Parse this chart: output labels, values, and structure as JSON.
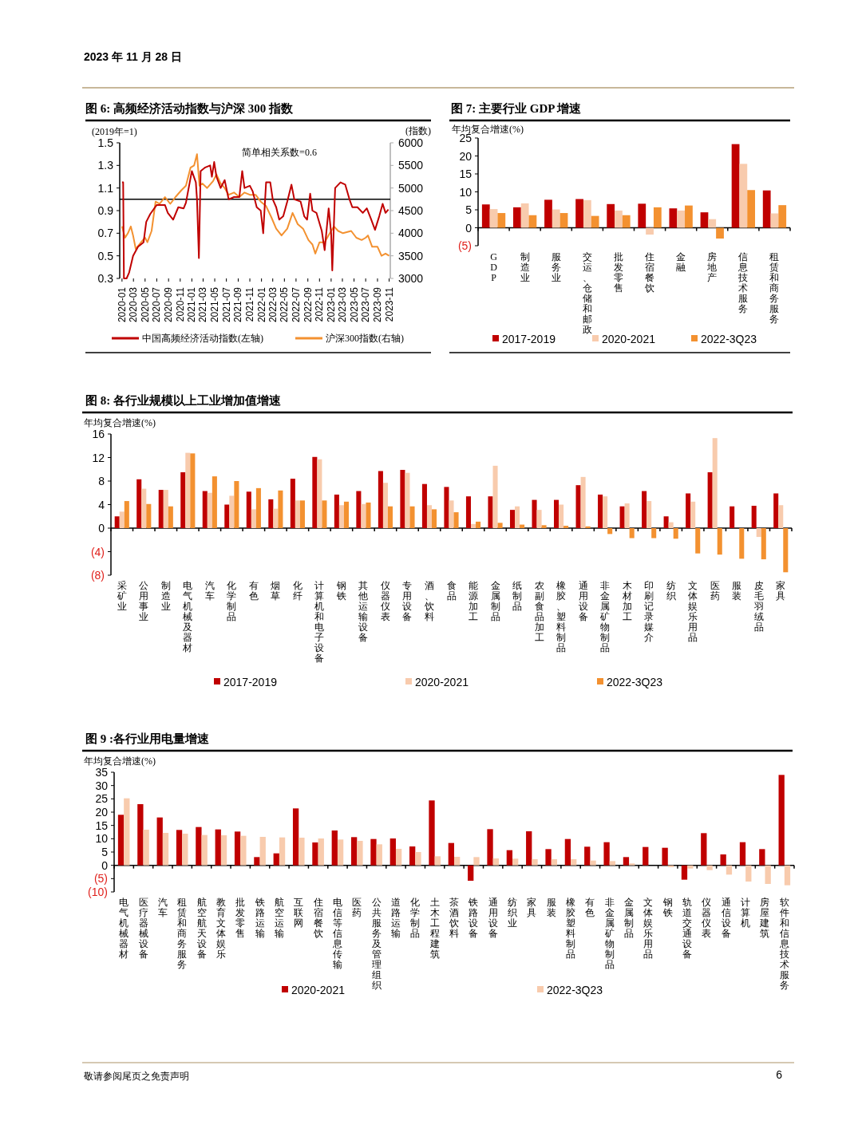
{
  "chart_data": [
    {
      "type": "line",
      "title": "图 6: 高频经济活动指数与沪深 300 指数",
      "ylabel": "(2019年=1)",
      "y2label": "(指数)",
      "xlim": [
        "2019-12-20",
        "2023-11-07"
      ],
      "xticks": [
        "2020-01",
        "2020-03",
        "2020-05",
        "2020-07",
        "2020-09",
        "2020-11",
        "2021-01",
        "2021-03",
        "2021-05",
        "2021-07",
        "2021-09",
        "2021-11",
        "2022-01",
        "2022-03",
        "2022-05",
        "2022-07",
        "2022-09",
        "2022-11",
        "2023-01",
        "2023-03",
        "2023-05",
        "2023-07",
        "2023-09",
        "2023-11"
      ],
      "ylim": [
        0.3,
        1.5
      ],
      "yticks": [
        0.3,
        0.5,
        0.7,
        0.9,
        1.1,
        1.3,
        1.5
      ],
      "y2lim": [
        3000,
        6000
      ],
      "y2ticks": [
        3000,
        3500,
        4000,
        4500,
        5000,
        5500,
        6000
      ],
      "legend": "bottom",
      "ref_lines": [
        {
          "axis": "y",
          "value": 1,
          "color": "#000000"
        }
      ],
      "annotations": [
        "简单相关系数=0.6",
        "2023 年 11 月 28 日"
      ],
      "series": [
        {
          "name": "中国高频经济活动指数(左轴)",
          "color": "#c00000",
          "x": [
            "2020-01-01",
            "2020-01-07",
            "2020-01-11",
            "2020-01-25",
            "2020-02-07",
            "2020-02-28",
            "2020-03-25",
            "2020-04-23",
            "2020-05-07",
            "2020-05-28",
            "2020-07-01",
            "2020-08-13",
            "2020-08-28",
            "2020-09-25",
            "2020-10-22",
            "2020-11-19",
            "2020-12-01",
            "2021-01-01",
            "2021-01-22",
            "2021-01-28",
            "2021-02-07",
            "2021-02-16",
            "2021-03-10",
            "2021-04-07",
            "2021-04-16",
            "2021-04-28",
            "2021-05-10",
            "2021-06-01",
            "2021-06-22",
            "2021-07-13",
            "2021-08-10",
            "2021-09-07",
            "2021-09-22",
            "2021-10-04",
            "2021-11-01",
            "2021-11-16",
            "2021-12-07",
            "2021-12-28",
            "2022-01-10",
            "2022-01-25",
            "2022-02-16",
            "2022-03-01",
            "2022-03-19",
            "2022-04-04",
            "2022-04-25",
            "2022-05-16",
            "2022-06-07",
            "2022-06-22",
            "2022-07-25",
            "2022-08-13",
            "2022-08-28",
            "2022-09-13",
            "2022-09-25",
            "2022-10-16",
            "2022-11-13",
            "2022-11-28",
            "2022-12-19",
            "2023-01-01",
            "2023-01-07",
            "2023-01-22",
            "2023-02-19",
            "2023-03-16",
            "2023-04-07",
            "2023-04-22",
            "2023-05-19",
            "2023-06-16",
            "2023-07-07",
            "2023-07-28",
            "2023-08-19",
            "2023-09-10",
            "2023-09-28",
            "2023-10-13",
            "2023-10-28"
          ],
          "values": [
            1.15,
            1.15,
            0.3,
            0.3,
            0.35,
            0.5,
            0.58,
            0.62,
            0.8,
            0.87,
            0.95,
            0.95,
            0.88,
            0.82,
            0.93,
            0.92,
            0.97,
            1.25,
            1.15,
            1.0,
            0.48,
            1.25,
            1.28,
            1.3,
            1.2,
            1.33,
            1.2,
            1.1,
            1.17,
            1.0,
            1.02,
            1.02,
            1.25,
            1.1,
            1.12,
            1.07,
            0.93,
            0.9,
            0.7,
            1.15,
            1.15,
            1.0,
            0.93,
            0.82,
            0.85,
            0.98,
            1.13,
            1.0,
            0.98,
            0.85,
            0.82,
            1.05,
            0.9,
            0.88,
            0.72,
            0.55,
            0.92,
            0.7,
            0.37,
            1.1,
            1.15,
            1.13,
            1.0,
            0.93,
            0.93,
            0.88,
            0.92,
            0.83,
            0.73,
            0.85,
            0.96,
            0.88,
            0.91
          ]
        },
        {
          "name": "沪深300指数(右轴)",
          "color": "#f39130",
          "axis": "y2",
          "x": [
            "2020-01-01",
            "2020-01-17",
            "2020-02-01",
            "2020-02-16",
            "2020-02-28",
            "2020-03-13",
            "2020-04-10",
            "2020-05-01",
            "2020-05-13",
            "2020-06-04",
            "2020-06-25",
            "2020-07-16",
            "2020-08-13",
            "2020-09-10",
            "2020-10-07",
            "2020-11-07",
            "2020-12-01",
            "2020-12-25",
            "2021-01-13",
            "2021-01-28",
            "2021-02-10",
            "2021-02-25",
            "2021-03-22",
            "2021-04-22",
            "2021-05-10",
            "2021-06-01",
            "2021-06-22",
            "2021-07-13",
            "2021-08-10",
            "2021-09-07",
            "2021-10-04",
            "2021-11-01",
            "2021-12-01",
            "2021-12-28",
            "2022-01-25",
            "2022-02-22",
            "2022-03-19",
            "2022-04-16",
            "2022-05-16",
            "2022-06-13",
            "2022-07-10",
            "2022-08-07",
            "2022-09-04",
            "2022-09-25",
            "2022-10-10",
            "2022-11-01",
            "2022-11-28",
            "2022-12-25",
            "2023-01-16",
            "2023-02-07",
            "2023-03-04",
            "2023-04-16",
            "2023-05-13",
            "2023-06-10",
            "2023-07-01",
            "2023-07-13",
            "2023-08-04",
            "2023-09-01",
            "2023-09-22",
            "2023-10-13",
            "2023-11-01"
          ],
          "values": [
            4150,
            3900,
            4000,
            4150,
            3950,
            3650,
            3800,
            3900,
            3800,
            4050,
            4700,
            4650,
            4800,
            4650,
            4800,
            4950,
            5050,
            5450,
            5500,
            5750,
            5050,
            5100,
            5000,
            5150,
            5300,
            5100,
            5000,
            4850,
            4900,
            4800,
            4900,
            4850,
            4850,
            4700,
            4600,
            4350,
            4100,
            3950,
            4100,
            4450,
            4200,
            4100,
            3850,
            3750,
            3550,
            3800,
            3800,
            4000,
            4150,
            4050,
            4000,
            4050,
            3900,
            3850,
            3900,
            3950,
            3700,
            3700,
            3500,
            3550,
            3500
          ]
        }
      ]
    },
    {
      "type": "bar",
      "title": "图 7: 主要行业 GDP 增速",
      "ylabel": "年均复合增速(%)",
      "ylim": [
        -5,
        25
      ],
      "yticks": [
        {
          "value": -5,
          "label": "(5)"
        },
        0,
        5,
        10,
        15,
        20,
        25
      ],
      "legend": "bottom",
      "categories": [
        "GDP",
        "制造业",
        "服务业",
        "交运、仓储和邮政",
        "批发零售",
        "住宿餐饮",
        "金融",
        "房地产",
        "信息技术服务",
        "租赁和商务服务"
      ],
      "series": [
        {
          "name": "2017-2019",
          "color": "#c00000",
          "values": [
            6.5,
            5.7,
            7.8,
            8.0,
            6.6,
            6.7,
            5.4,
            4.3,
            23.3,
            10.4
          ]
        },
        {
          "name": "2020-2021",
          "color": "#f8cbad",
          "values": [
            5.2,
            6.8,
            5.1,
            7.7,
            4.8,
            -1.9,
            4.8,
            2.4,
            17.8,
            4.0
          ]
        },
        {
          "name": "2022-3Q23",
          "color": "#f39130",
          "values": [
            4.1,
            3.5,
            4.1,
            3.3,
            3.5,
            5.7,
            6.2,
            -3.0,
            10.5,
            6.3
          ]
        }
      ]
    },
    {
      "type": "bar",
      "title": "图 8: 各行业规模以上工业增加值增速",
      "ylabel": "年均复合增速(%)",
      "ylim": [
        -8,
        16
      ],
      "yticks": [
        {
          "value": -8,
          "label": "(8)"
        },
        {
          "value": -4,
          "label": "(4)"
        },
        0,
        4,
        8,
        12,
        16
      ],
      "legend": "bottom",
      "categories": [
        "采矿业",
        "公用事业",
        "制造业",
        "电气机械及器材",
        "汽车",
        "化学制品",
        "有色",
        "烟草",
        "化纤",
        "计算机和电子设备",
        "钢铁",
        "其他运输设备",
        "仪器仪表",
        "专用设备",
        "酒、饮料",
        "食品",
        "能源加工",
        "金属制品",
        "纸制品",
        "农副食品加工",
        "橡胶、塑料制品",
        "通用设备",
        "非金属矿物制品",
        "木材加工",
        "印刷记录媒介",
        "纺织",
        "文体娱乐用品",
        "医药",
        "服装",
        "皮毛羽绒品",
        "家具"
      ],
      "series": [
        {
          "name": "2017-2019",
          "color": "#c00000",
          "values": [
            2.0,
            8.3,
            6.5,
            9.5,
            6.3,
            4.0,
            6.2,
            4.9,
            8.4,
            12.1,
            5.7,
            6.3,
            9.7,
            9.9,
            7.5,
            7.0,
            5.4,
            5.4,
            3.1,
            4.8,
            4.8,
            7.3,
            5.7,
            3.7,
            6.3,
            2.0,
            5.9,
            9.5,
            3.7,
            3.8,
            5.9
          ]
        },
        {
          "name": "2020-2021",
          "color": "#f8cbad",
          "values": [
            2.8,
            6.7,
            6.5,
            12.8,
            6.0,
            5.5,
            3.2,
            3.3,
            4.7,
            11.7,
            3.9,
            4.1,
            7.7,
            9.4,
            3.9,
            4.7,
            0.7,
            10.6,
            3.7,
            3.1,
            4.0,
            8.7,
            5.4,
            4.2,
            4.6,
            1.0,
            4.5,
            15.3,
            0,
            -1.5,
            3.9
          ]
        },
        {
          "name": "2022-3Q23",
          "color": "#f39130",
          "values": [
            4.6,
            4.1,
            3.7,
            12.7,
            8.8,
            8.0,
            6.8,
            6.4,
            4.7,
            4.7,
            4.5,
            4.35,
            3.7,
            3.7,
            3.2,
            2.7,
            1.1,
            0.9,
            0.6,
            0.5,
            0.4,
            0.3,
            -1.0,
            -1.7,
            -1.7,
            -1.8,
            -4.3,
            -4.5,
            -5.2,
            -5.3,
            -7.5
          ]
        }
      ]
    },
    {
      "type": "bar",
      "title": "图 9 :各行业用电量增速",
      "ylabel": "年均复合增速(%)",
      "ylim": [
        -10,
        35
      ],
      "yticks": [
        {
          "value": -10,
          "label": "(10)"
        },
        {
          "value": -5,
          "label": "(5)"
        },
        0,
        5,
        10,
        15,
        20,
        25,
        30,
        35
      ],
      "legend": "bottom",
      "annotations": [
        "敬请参阅尾页之免责声明",
        "6"
      ],
      "categories": [
        "电气机械器材",
        "医疗器械设备",
        "汽车",
        "租赁和商务服务",
        "航空航天设备",
        "教育文体娱乐",
        "批发零售",
        "铁路运输",
        "航空运输",
        "互联网",
        "住宿餐饮",
        "电信等信息传输",
        "医药",
        "公共服务及管理组织",
        "道路运输",
        "化学制品",
        "土木工程建筑",
        "茶酒饮料",
        "铁路设备",
        "通用设备",
        "纺织业",
        "家具",
        "服装",
        "橡胶塑料制品",
        "有色",
        "非金属矿物制品",
        "金属制品",
        "文体娱乐用品",
        "钢铁",
        "轨道交通设备",
        "仪器仪表",
        "通信设备",
        "计算机",
        "房屋建筑",
        "软件和信息技术服务"
      ],
      "series": [
        {
          "name": "2020-2021",
          "color": "#c00000",
          "values": [
            19.0,
            23.0,
            18.0,
            13.3,
            14.4,
            13.5,
            12.7,
            3.1,
            4.5,
            21.4,
            8.6,
            13.1,
            10.6,
            9.9,
            10.1,
            7.1,
            24.4,
            8.4,
            -5.8,
            13.6,
            5.7,
            12.8,
            6.1,
            9.9,
            7.0,
            8.7,
            3.1,
            6.9,
            6.6,
            -5.4,
            12.1,
            4.1,
            8.7,
            6.1,
            34.0
          ]
        },
        {
          "name": "2022-3Q23",
          "color": "#f8cbad",
          "values": [
            25.2,
            13.4,
            12.2,
            11.9,
            11.4,
            11.3,
            11.1,
            10.7,
            10.5,
            10.4,
            10.1,
            9.7,
            9.2,
            7.9,
            6.2,
            5.0,
            3.4,
            3.2,
            3.1,
            2.6,
            2.5,
            2.3,
            2.3,
            2.3,
            1.8,
            1.6,
            0.7,
            0,
            -0.7,
            -1.2,
            -1.8,
            -3.5,
            -6.1,
            -7.0,
            -7.5
          ]
        }
      ]
    }
  ]
}
